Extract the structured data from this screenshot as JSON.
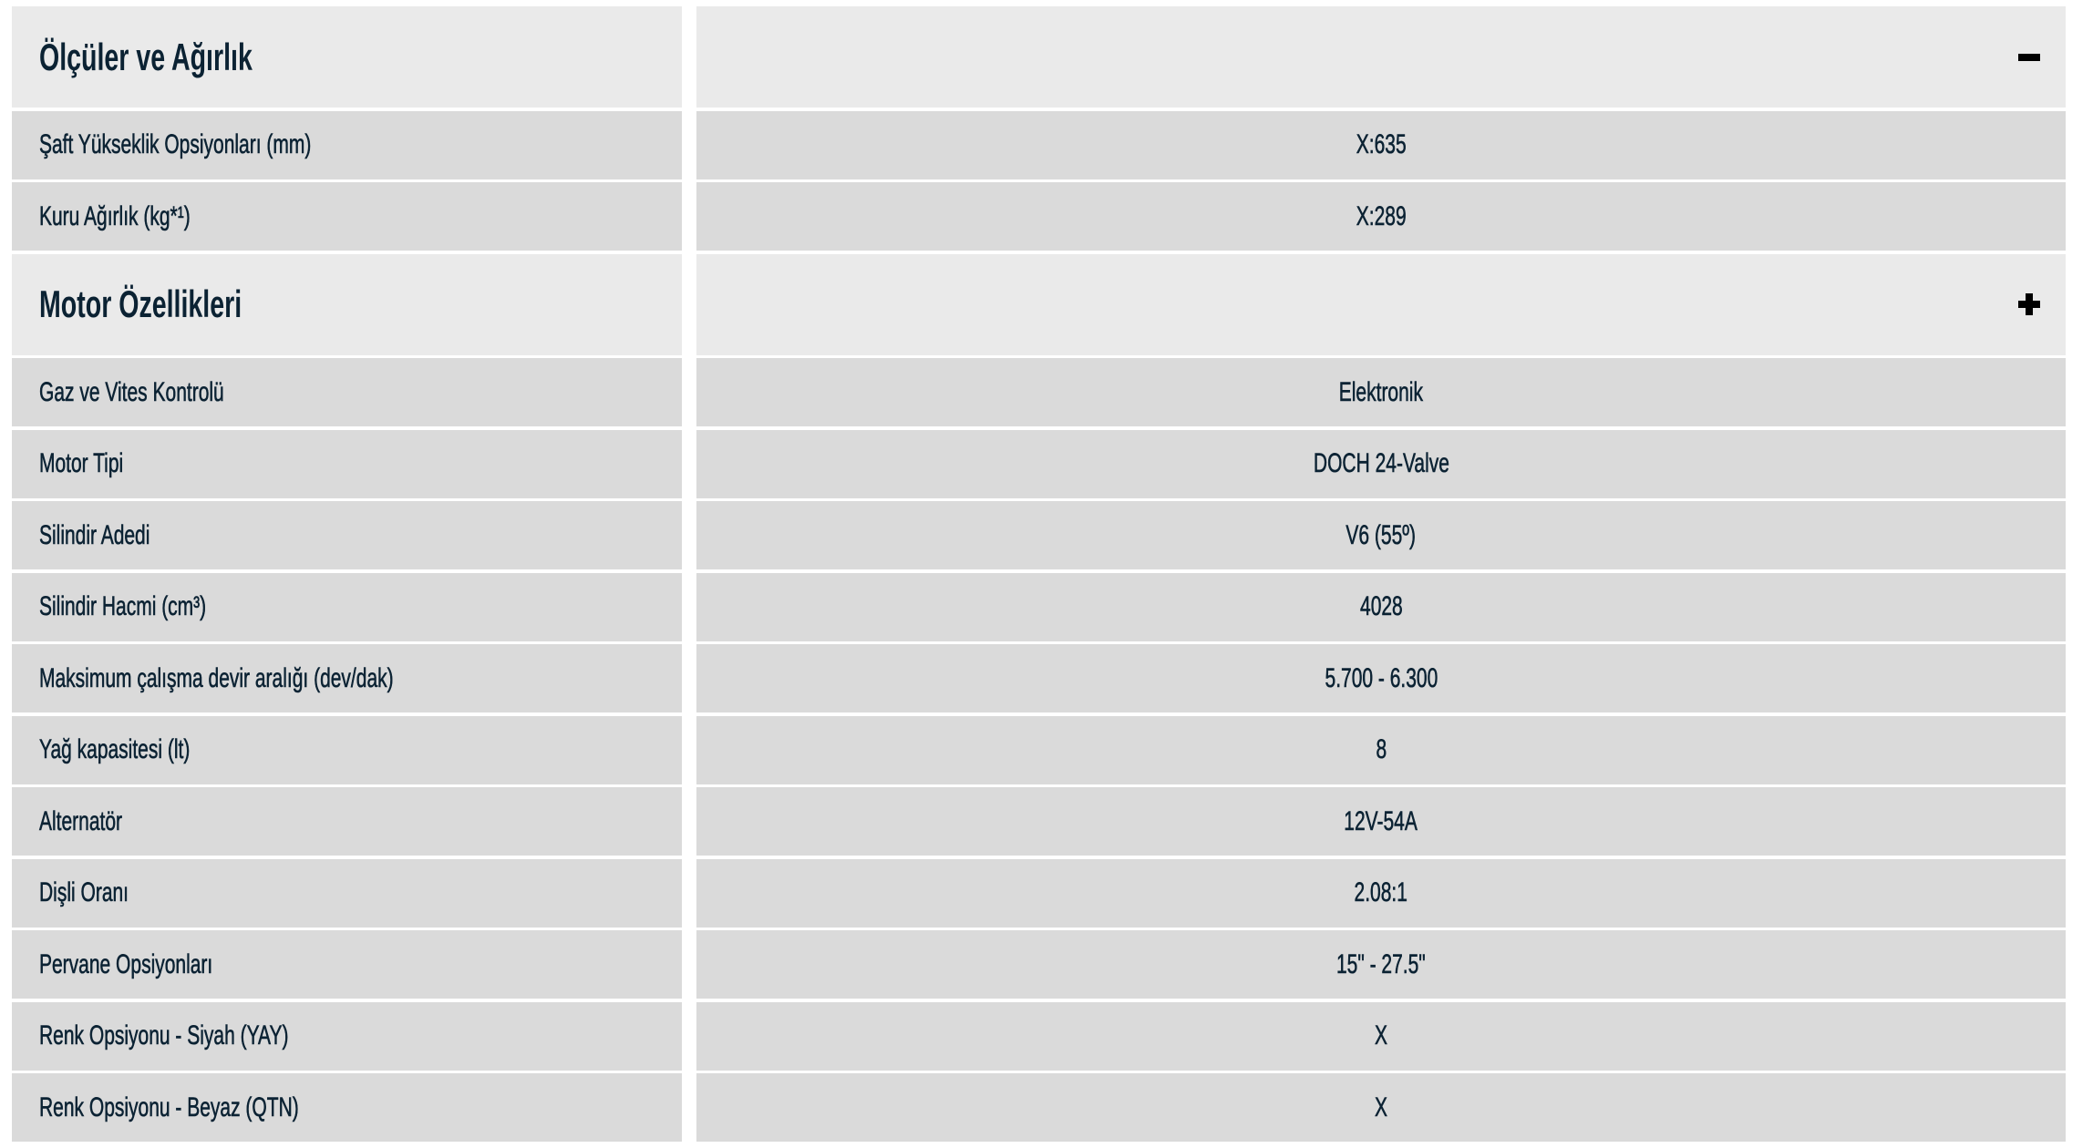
{
  "sections": [
    {
      "title": "Ölçüler ve Ağırlık",
      "toggle_icon": "minus-icon",
      "rows": [
        {
          "label": "Şaft Yükseklik Opsiyonları (mm)",
          "value": "X:635"
        },
        {
          "label": "Kuru Ağırlık (kg*¹)",
          "value": "X:289"
        }
      ]
    },
    {
      "title": "Motor Özellikleri",
      "toggle_icon": "plus-icon",
      "rows": [
        {
          "label": "Gaz ve Vites Kontrolü",
          "value": "Elektronik"
        },
        {
          "label": "Motor Tipi",
          "value": "DOCH 24-Valve"
        },
        {
          "label": "Silindir Adedi",
          "value": "V6 (55º)"
        },
        {
          "label": "Silindir Hacmi (cm³)",
          "value": "4028"
        },
        {
          "label": "Maksimum çalışma devir aralığı (dev/dak)",
          "value": "5.700 - 6.300"
        },
        {
          "label": "Yağ kapasitesi (lt)",
          "value": "8"
        },
        {
          "label": "Alternatör",
          "value": "12V-54A"
        },
        {
          "label": "Dişli Oranı",
          "value": "2.08:1"
        },
        {
          "label": "Pervane Opsiyonları",
          "value": "15\" - 27.5\""
        },
        {
          "label": "Renk Opsiyonu - Siyah (YAY)",
          "value": "X"
        },
        {
          "label": "Renk Opsiyonu - Beyaz (QTN)",
          "value": "X"
        }
      ]
    }
  ],
  "colors": {
    "section_bg": "#eaeaea",
    "row_bg": "#dadada",
    "text": "#0b2233"
  }
}
